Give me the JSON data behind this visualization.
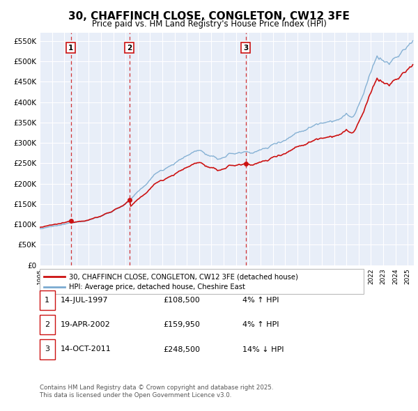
{
  "title": "30, CHAFFINCH CLOSE, CONGLETON, CW12 3FE",
  "subtitle": "Price paid vs. HM Land Registry's House Price Index (HPI)",
  "bg_color": "#ffffff",
  "plot_bg_color": "#e8eef8",
  "grid_color": "#ffffff",
  "ylabel_ticks": [
    "£0",
    "£50K",
    "£100K",
    "£150K",
    "£200K",
    "£250K",
    "£300K",
    "£350K",
    "£400K",
    "£450K",
    "£500K",
    "£550K"
  ],
  "ytick_values": [
    0,
    50000,
    100000,
    150000,
    200000,
    250000,
    300000,
    350000,
    400000,
    450000,
    500000,
    550000
  ],
  "ylim": [
    0,
    570000
  ],
  "xlim_start": 1995.0,
  "xlim_end": 2025.5,
  "hpi_color": "#7aaad0",
  "price_color": "#cc1111",
  "sale_marker_color": "#cc1111",
  "sale1_x": 1997.536,
  "sale1_y": 108500,
  "sale2_x": 2002.3,
  "sale2_y": 159950,
  "sale3_x": 2011.786,
  "sale3_y": 248500,
  "vline1_x": 1997.536,
  "vline2_x": 2002.3,
  "vline3_x": 2011.786,
  "legend_label_price": "30, CHAFFINCH CLOSE, CONGLETON, CW12 3FE (detached house)",
  "legend_label_hpi": "HPI: Average price, detached house, Cheshire East",
  "note1_num": "1",
  "note1_date": "14-JUL-1997",
  "note1_price": "£108,500",
  "note1_pct": "4% ↑ HPI",
  "note2_num": "2",
  "note2_date": "19-APR-2002",
  "note2_price": "£159,950",
  "note2_pct": "4% ↑ HPI",
  "note3_num": "3",
  "note3_date": "14-OCT-2011",
  "note3_price": "£248,500",
  "note3_pct": "14% ↓ HPI",
  "footer": "Contains HM Land Registry data © Crown copyright and database right 2025.\nThis data is licensed under the Open Government Licence v3.0."
}
